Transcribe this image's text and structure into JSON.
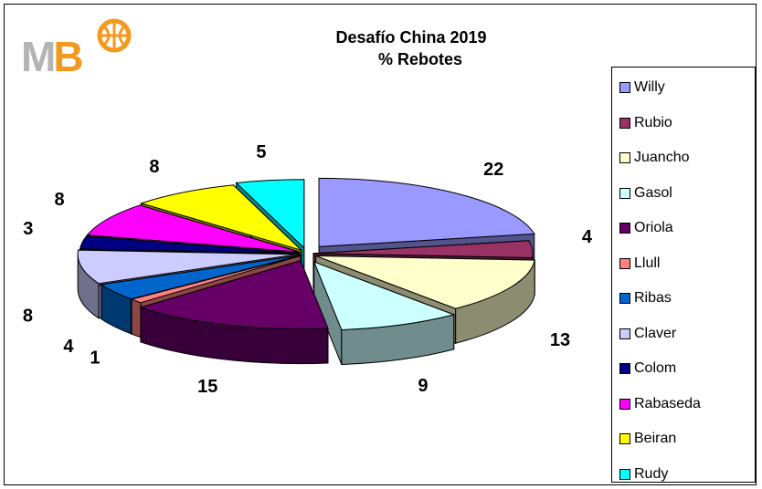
{
  "logo": {
    "text_m": "M",
    "text_b": "B"
  },
  "chart_data": {
    "type": "pie",
    "title": "Desafío China 2019",
    "subtitle": "% Rebotes",
    "legend_position": "right",
    "categories": [
      "Willy",
      "Rubio",
      "Juancho",
      "Gasol",
      "Oriola",
      "Llull",
      "Ribas",
      "Claver",
      "Colom",
      "Rabaseda",
      "Beiran",
      "Rudy"
    ],
    "values": [
      22,
      4,
      13,
      9,
      15,
      1,
      4,
      8,
      3,
      8,
      8,
      5
    ],
    "colors": [
      "#9999ff",
      "#993366",
      "#ffffcc",
      "#ccffff",
      "#660066",
      "#ff8080",
      "#0066cc",
      "#ccccff",
      "#000080",
      "#ff00ff",
      "#ffff00",
      "#00ffff"
    ]
  }
}
